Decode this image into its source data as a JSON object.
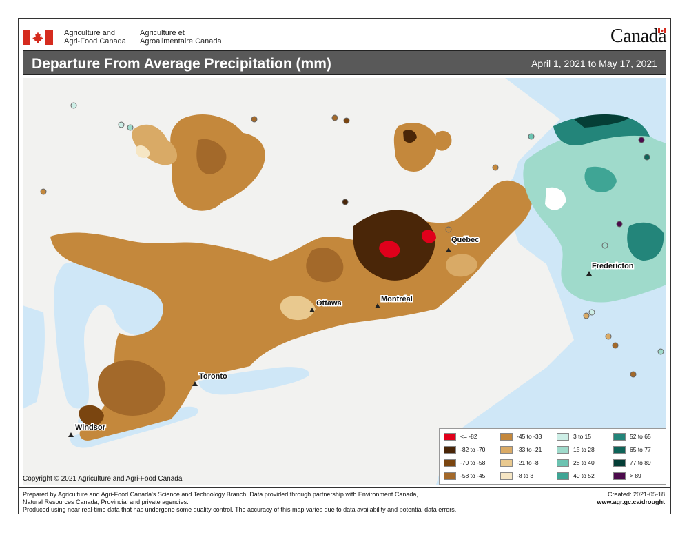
{
  "header": {
    "department_en_line1": "Agriculture and",
    "department_en_line2": "Agri-Food Canada",
    "department_fr_line1": "Agriculture et",
    "department_fr_line2": "Agroalimentaire Canada",
    "wordmark": "Canada",
    "flag_icon": "canada-flag-icon",
    "flag_red": "#d52b1e"
  },
  "title": {
    "text": "Departure From Average Precipitation (mm)",
    "period": "April 1, 2021 to May 17, 2021"
  },
  "map": {
    "cities": [
      {
        "name": "Québec"
      },
      {
        "name": "Fredericton"
      },
      {
        "name": "Ottawa"
      },
      {
        "name": "Montréal"
      },
      {
        "name": "Toronto"
      },
      {
        "name": "Windsor"
      }
    ],
    "water_color": "#cfe7f7",
    "land_color": "#f2f2f0"
  },
  "legend": {
    "items": [
      {
        "label": "<= -82",
        "color": "#e0001b"
      },
      {
        "label": "-82 to -70",
        "color": "#4a2608"
      },
      {
        "label": "-70 to -58",
        "color": "#7a4510"
      },
      {
        "label": "-58 to -45",
        "color": "#a3692a"
      },
      {
        "label": "-45 to -33",
        "color": "#c4883c"
      },
      {
        "label": "-33 to -21",
        "color": "#d9aa66"
      },
      {
        "label": "-21 to -8",
        "color": "#e9c98f"
      },
      {
        "label": "-8 to 3",
        "color": "#f6e6c4"
      },
      {
        "label": "3 to 15",
        "color": "#cdeee6"
      },
      {
        "label": "15 to 28",
        "color": "#9fdacb"
      },
      {
        "label": "28 to 40",
        "color": "#6cc3b1"
      },
      {
        "label": "40 to 52",
        "color": "#3fa595"
      },
      {
        "label": "52 to 65",
        "color": "#23857a"
      },
      {
        "label": "65 to 77",
        "color": "#0f6358"
      },
      {
        "label": "77 to 89",
        "color": "#053e36"
      },
      {
        "label": "> 89",
        "color": "#4c0a4c"
      }
    ]
  },
  "copyright": "Copyright © 2021 Agriculture and Agri-Food Canada",
  "footer": {
    "line1": "Prepared by Agriculture and Agri-Food Canada's Science and Technology Branch. Data provided through partnership with Environment Canada,",
    "line2": "Natural Resources Canada, Provincial and private agencies.",
    "line3": "Produced using near real-time data that has undergone some quality control. The accuracy of this map varies due to data availability and potential data errors.",
    "created": "Created: 2021-05-18",
    "url": "www.agr.gc.ca/drought"
  }
}
